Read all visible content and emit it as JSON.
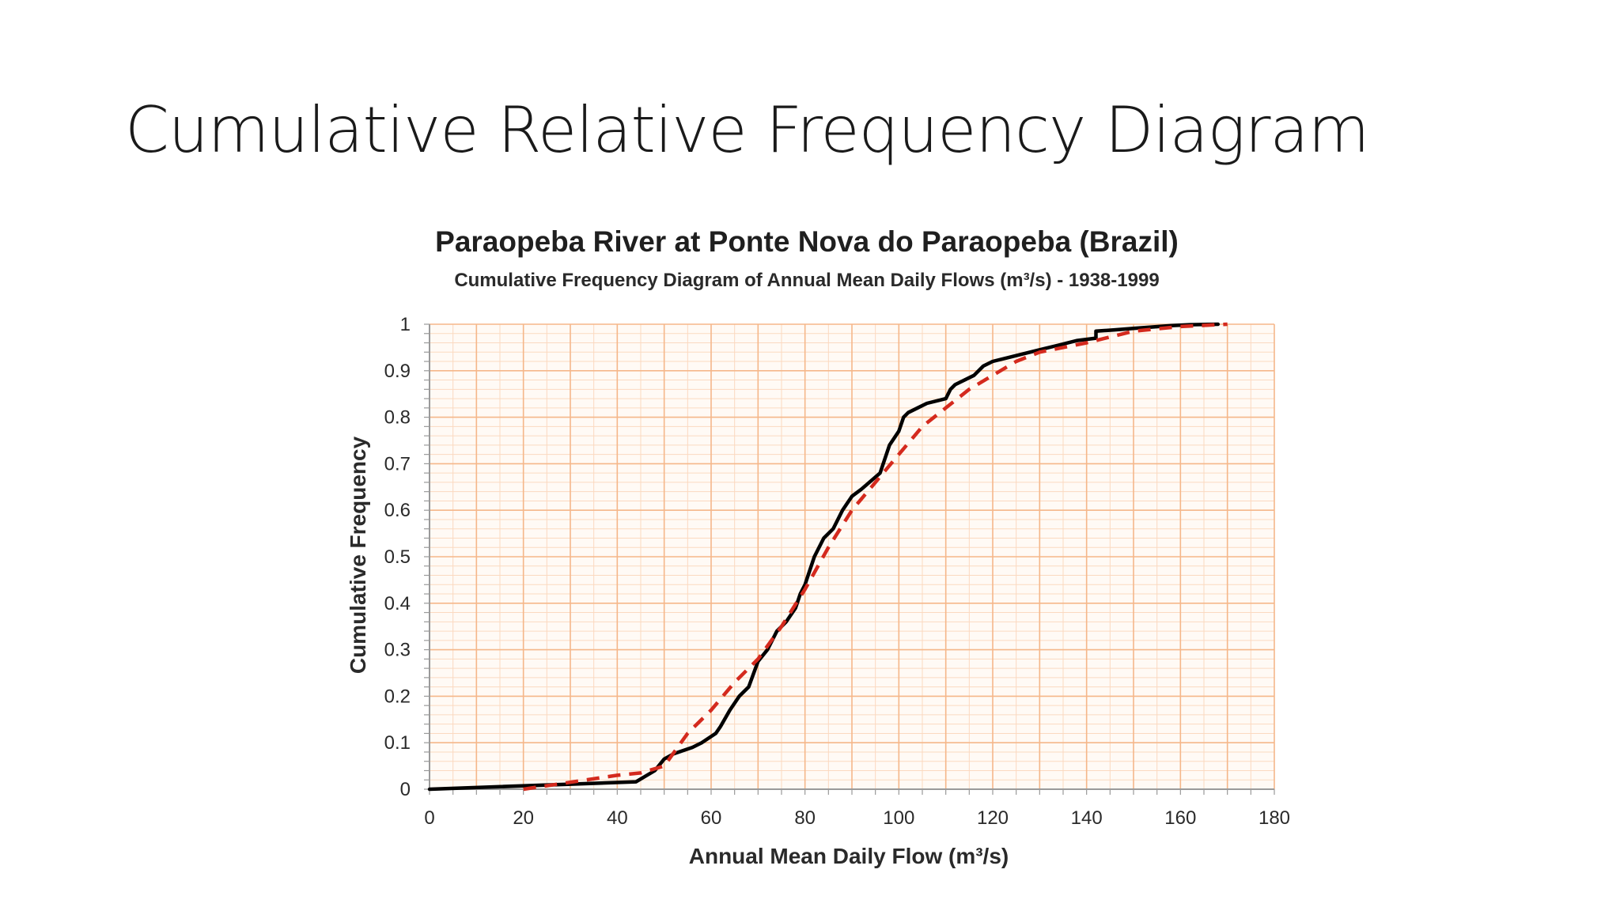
{
  "slide": {
    "title": "Cumulative Relative Frequency Diagram"
  },
  "chart_data": {
    "type": "line",
    "title": "Paraopeba River at Ponte Nova do Paraopeba (Brazil)",
    "subtitle": "Cumulative Frequency Diagram of Annual Mean Daily Flows (m³/s) - 1938-1999",
    "xlabel": "Annual Mean Daily Flow (m³/s)",
    "ylabel": "Cumulative Frequency",
    "xlim": [
      0,
      180
    ],
    "ylim": [
      0,
      1
    ],
    "xticks": [
      "0",
      "20",
      "40",
      "60",
      "80",
      "100",
      "120",
      "140",
      "160",
      "180"
    ],
    "yticks": [
      "0",
      "0.1",
      "0.2",
      "0.3",
      "0.4",
      "0.5",
      "0.6",
      "0.7",
      "0.8",
      "0.9",
      "1"
    ],
    "grid": true,
    "colors": {
      "grid_major": "#f5b78a",
      "grid_minor": "#fbd9c0",
      "empirical": "#000000",
      "fitted": "#d42a1e"
    },
    "series": [
      {
        "style": "solid",
        "color": "#000000",
        "x": [
          0,
          44,
          48,
          50,
          52,
          56,
          58,
          61,
          62,
          64,
          66,
          68,
          70,
          72,
          74,
          76,
          78,
          79,
          80,
          81,
          82,
          84,
          86,
          88,
          90,
          92,
          96,
          98,
          100,
          101,
          102,
          104,
          106,
          110,
          111,
          112,
          116,
          118,
          120,
          126,
          130,
          134,
          138,
          142,
          142,
          146,
          150,
          154,
          158,
          162,
          168
        ],
        "y": [
          0.0,
          0.016,
          0.04,
          0.065,
          0.076,
          0.09,
          0.1,
          0.12,
          0.135,
          0.17,
          0.2,
          0.22,
          0.275,
          0.3,
          0.34,
          0.36,
          0.39,
          0.42,
          0.44,
          0.47,
          0.5,
          0.54,
          0.56,
          0.6,
          0.63,
          0.645,
          0.68,
          0.74,
          0.77,
          0.8,
          0.81,
          0.82,
          0.83,
          0.84,
          0.86,
          0.87,
          0.89,
          0.91,
          0.92,
          0.935,
          0.945,
          0.955,
          0.965,
          0.97,
          0.985,
          0.988,
          0.991,
          0.994,
          0.997,
          0.999,
          1.0
        ]
      },
      {
        "style": "dashed",
        "color": "#d42a1e",
        "x": [
          20,
          30,
          40,
          45,
          50,
          55,
          60,
          65,
          70,
          75,
          80,
          85,
          90,
          95,
          100,
          105,
          110,
          115,
          120,
          125,
          130,
          140,
          150,
          160,
          170
        ],
        "y": [
          0.0,
          0.015,
          0.03,
          0.035,
          0.05,
          0.12,
          0.17,
          0.23,
          0.28,
          0.35,
          0.43,
          0.52,
          0.6,
          0.66,
          0.72,
          0.78,
          0.82,
          0.86,
          0.89,
          0.92,
          0.94,
          0.96,
          0.985,
          0.995,
          1.0
        ]
      }
    ]
  }
}
